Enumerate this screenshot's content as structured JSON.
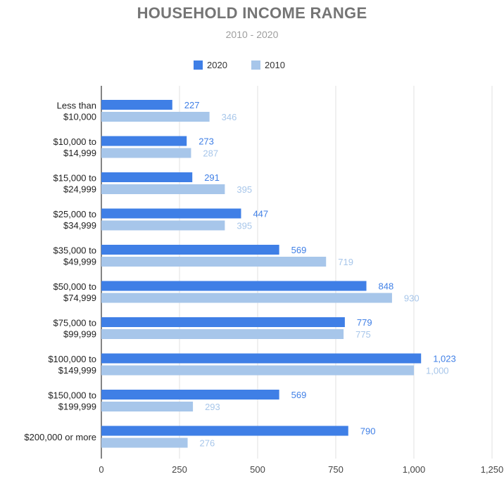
{
  "chart_data": {
    "type": "bar",
    "orientation": "horizontal",
    "title": "HOUSEHOLD INCOME RANGE",
    "subtitle": "2010 - 2020",
    "categories": [
      [
        "Less than",
        "$10,000"
      ],
      [
        "$10,000 to",
        "$14,999"
      ],
      [
        "$15,000 to",
        "$24,999"
      ],
      [
        "$25,000 to",
        "$34,999"
      ],
      [
        "$35,000 to",
        "$49,999"
      ],
      [
        "$50,000 to",
        "$74,999"
      ],
      [
        "$75,000 to",
        "$99,999"
      ],
      [
        "$100,000 to",
        "$149,999"
      ],
      [
        "$150,000 to",
        "$199,999"
      ],
      [
        "$200,000 or more"
      ]
    ],
    "series": [
      {
        "name": "2020",
        "color": "#3f7fe6",
        "values": [
          227,
          273,
          291,
          447,
          569,
          848,
          779,
          1023,
          569,
          790
        ],
        "labels": [
          "227",
          "273",
          "291",
          "447",
          "569",
          "848",
          "779",
          "1,023",
          "569",
          "790"
        ]
      },
      {
        "name": "2010",
        "color": "#a7c6ea",
        "values": [
          346,
          287,
          395,
          395,
          719,
          930,
          775,
          1000,
          293,
          276
        ],
        "labels": [
          "346",
          "287",
          "395",
          "395",
          "719",
          "930",
          "775",
          "1,000",
          "293",
          "276"
        ]
      }
    ],
    "xlim": [
      0,
      1250
    ],
    "xticks": [
      0,
      250,
      500,
      750,
      1000,
      1250
    ],
    "xtick_labels": [
      "0",
      "250",
      "500",
      "750",
      "1,000",
      "1,250"
    ],
    "grid": true,
    "legend_position": "top-center"
  }
}
